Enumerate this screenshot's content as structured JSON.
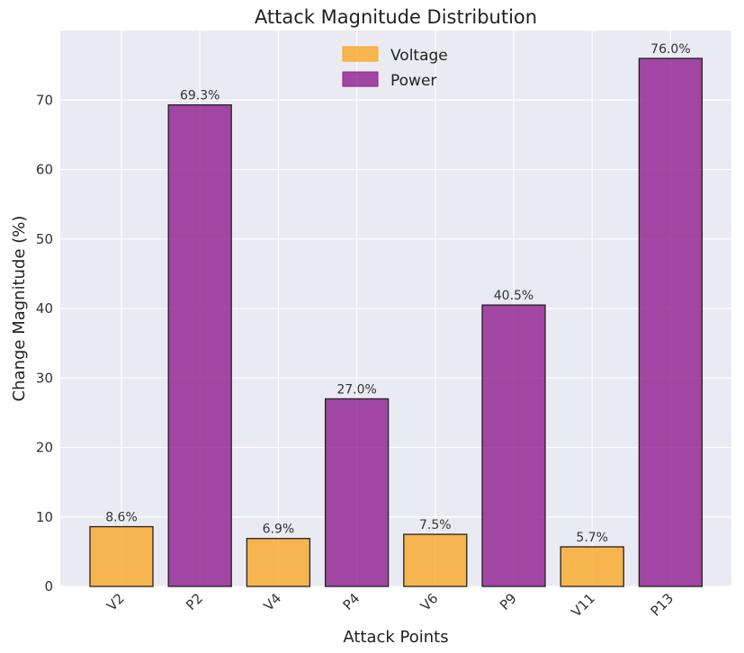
{
  "chart_data": {
    "type": "bar",
    "title": "Attack Magnitude Distribution",
    "xlabel": "Attack Points",
    "ylabel": "Change Magnitude (%)",
    "categories": [
      "V2",
      "P2",
      "V4",
      "P4",
      "V6",
      "P9",
      "V11",
      "P13"
    ],
    "values": [
      8.6,
      69.3,
      6.9,
      27.0,
      7.5,
      40.5,
      5.7,
      76.0
    ],
    "data_labels": [
      "8.6%",
      "69.3%",
      "6.9%",
      "27.0%",
      "7.5%",
      "40.5%",
      "5.7%",
      "76.0%"
    ],
    "bar_series": [
      "Voltage",
      "Power",
      "Voltage",
      "Power",
      "Voltage",
      "Power",
      "Voltage",
      "Power"
    ],
    "series": [
      {
        "name": "Voltage",
        "color": "#F9A825"
      },
      {
        "name": "Power",
        "color": "#8E1D8E"
      }
    ],
    "ylim": [
      0,
      80
    ],
    "yticks": [
      0,
      10,
      20,
      30,
      40,
      50,
      60,
      70
    ],
    "grid": true,
    "legend_position": "top-center",
    "background_color": "#EAEAF2"
  }
}
